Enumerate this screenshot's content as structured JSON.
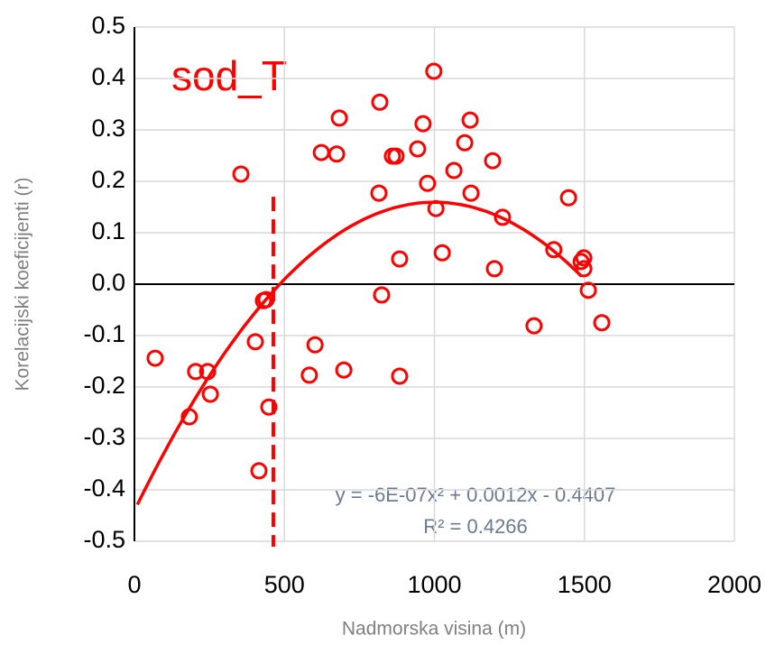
{
  "chart_data": {
    "type": "scatter",
    "annotation": "sod_T",
    "equation": "y = -6E-07x² + 0.0012x - 0.4407",
    "r_squared": "R² = 0.4266",
    "x_label": "Nadmorska visina (m)",
    "y_label": "Korelacijski koeficijenti (r)",
    "color": "#ff0000",
    "grid": true,
    "xlim": [
      0,
      2000
    ],
    "xticks": [
      0,
      500,
      1000,
      1500,
      2000
    ],
    "ylim": [
      -0.5,
      0.5
    ],
    "yticks": [
      0.5,
      0.4,
      0.3,
      0.2,
      0.1,
      {
        "value": 0,
        "label": "0.0"
      },
      -0.1,
      -0.2,
      -0.3,
      -0.4,
      -0.5
    ],
    "x": [
      69,
      183,
      204,
      244,
      253,
      355,
      403,
      415,
      430,
      439,
      448,
      583,
      602,
      623,
      674,
      683,
      698,
      818,
      815,
      824,
      860,
      872,
      884,
      884,
      944,
      962,
      977,
      998,
      1005,
      1026,
      1065,
      1101,
      1119,
      1122,
      1194,
      1200,
      1227,
      1332,
      1398,
      1447,
      1498,
      1489,
      1498,
      1513,
      1558
    ],
    "values": [
      -0.144,
      -0.258,
      -0.17,
      -0.17,
      -0.214,
      0.214,
      -0.112,
      -0.363,
      -0.032,
      -0.03,
      -0.239,
      -0.177,
      -0.118,
      0.256,
      0.253,
      0.323,
      -0.167,
      0.354,
      0.177,
      -0.021,
      0.249,
      0.249,
      0.049,
      -0.179,
      0.263,
      0.312,
      0.196,
      0.414,
      0.147,
      0.061,
      0.221,
      0.275,
      0.319,
      0.177,
      0.24,
      0.03,
      0.13,
      -0.081,
      0.067,
      0.168,
      0.03,
      0.044,
      0.051,
      -0.012,
      -0.075
    ],
    "trendline": {
      "coefficients": [
        -6e-07,
        0.0012,
        -0.4407
      ],
      "xlim": [
        10,
        1490
      ]
    },
    "vline": {
      "x": 463,
      "ytop": 0.17
    }
  }
}
